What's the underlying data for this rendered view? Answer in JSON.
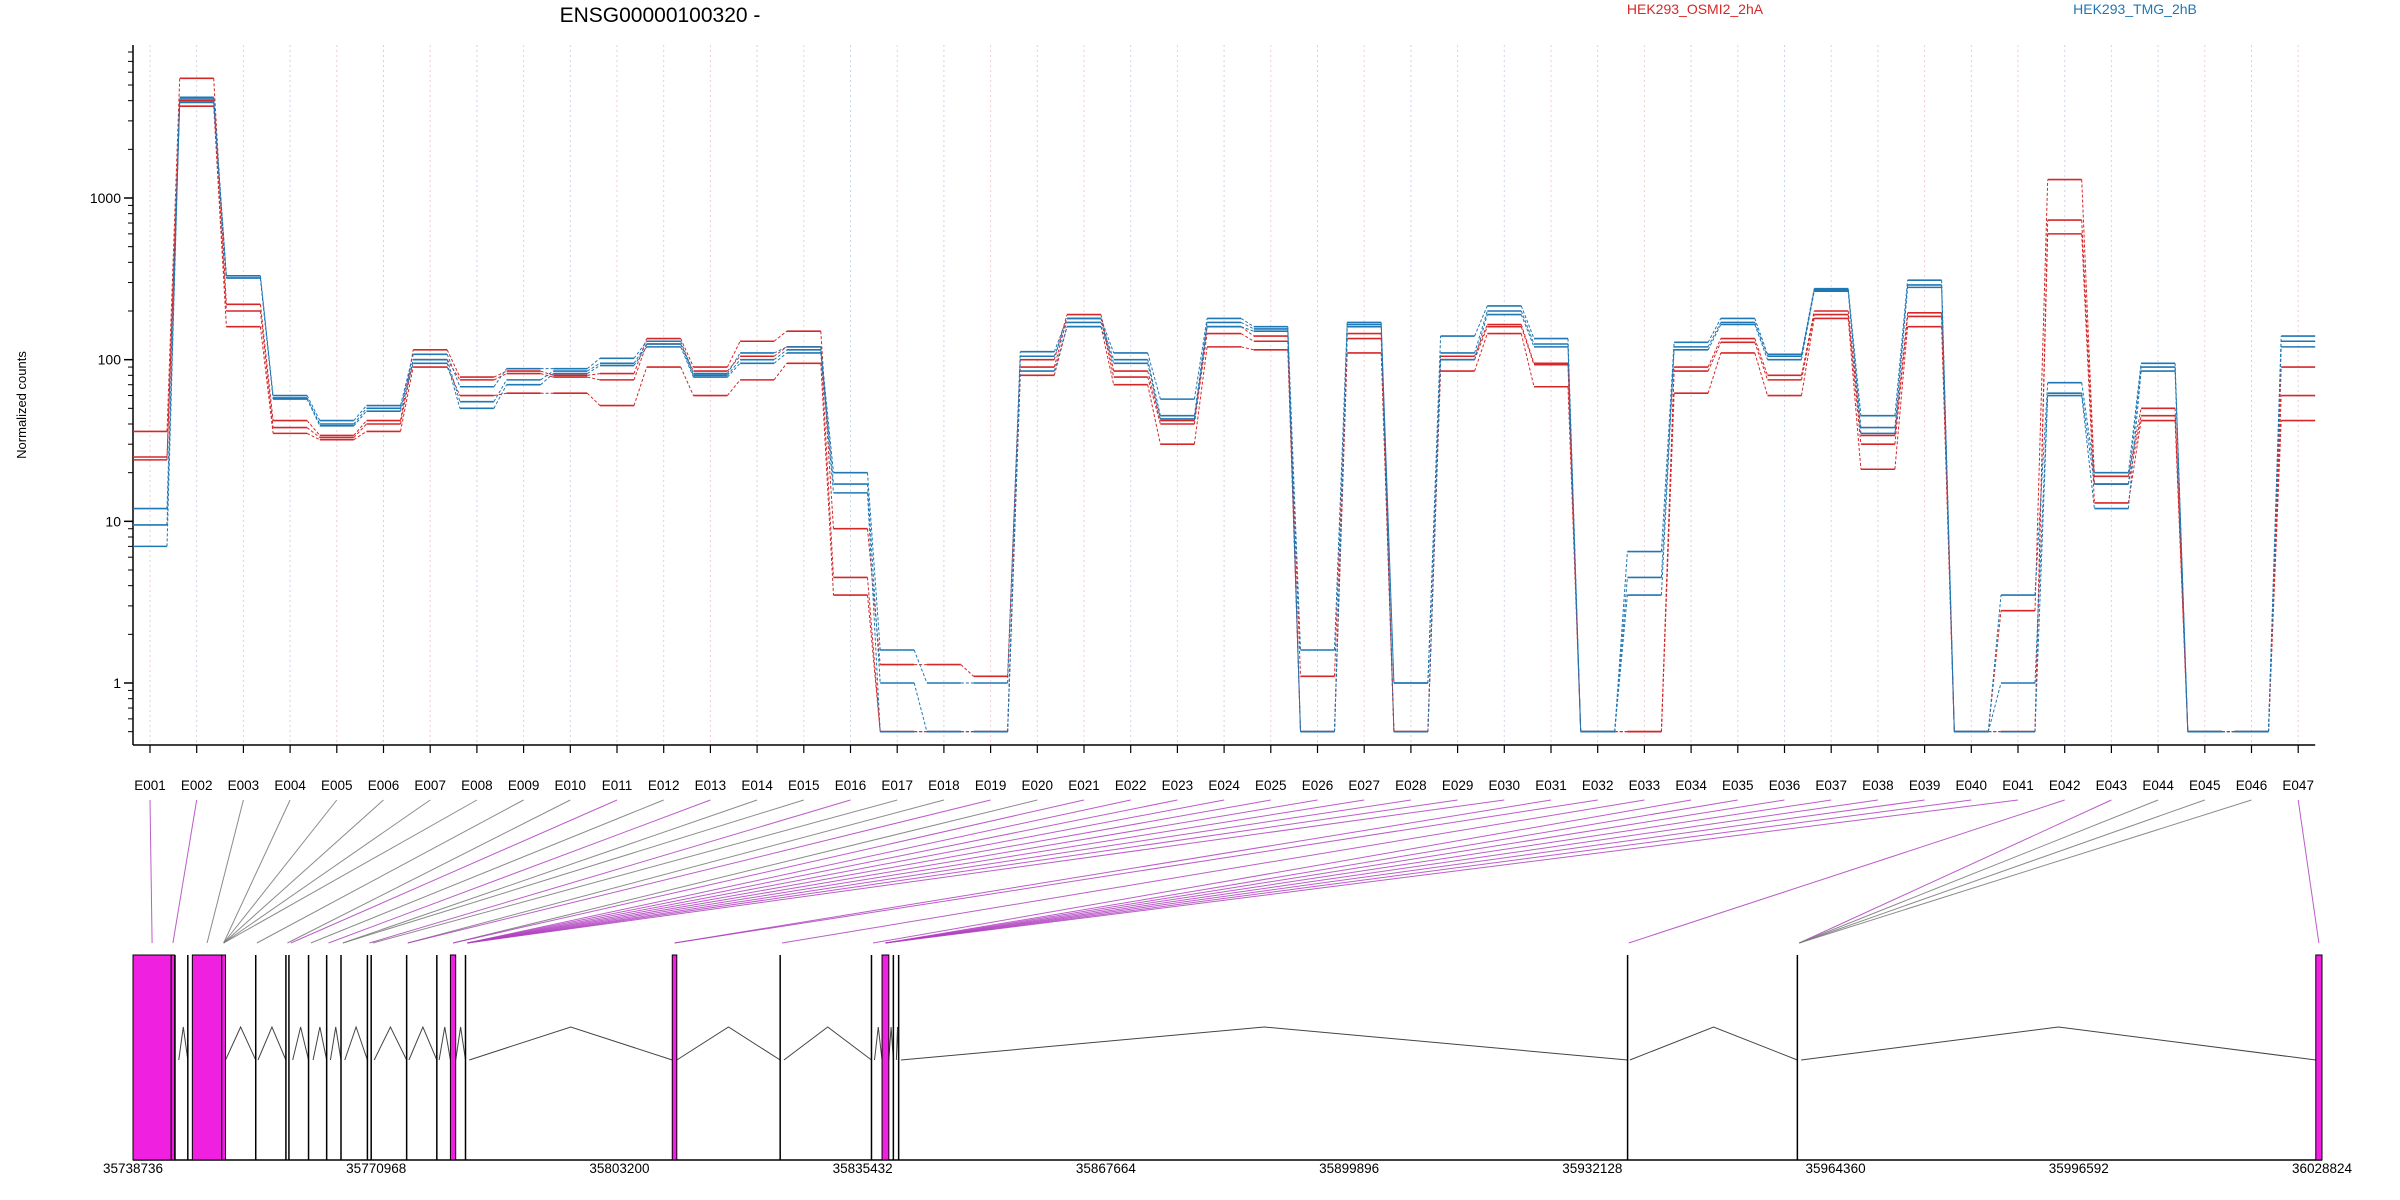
{
  "chart_data": {
    "type": "line",
    "title": "ENSG00000100320 -",
    "ylabel": "Normalized counts",
    "yscale": "log",
    "ylim": [
      0.5,
      8000
    ],
    "yticks": [
      1,
      10,
      100,
      1000
    ],
    "grid": "vertical dotted, colored alternately red/blue per exon",
    "legend": [
      {
        "name": "HEK293_OSMI2_2hA",
        "color": "#d62728"
      },
      {
        "name": "HEK293_TMG_2hB",
        "color": "#1f77b4"
      }
    ],
    "categories": [
      "E001",
      "E002",
      "E003",
      "E004",
      "E005",
      "E006",
      "E007",
      "E008",
      "E009",
      "E010",
      "E011",
      "E012",
      "E013",
      "E014",
      "E015",
      "E016",
      "E017",
      "E018",
      "E019",
      "E020",
      "E021",
      "E022",
      "E023",
      "E024",
      "E025",
      "E026",
      "E027",
      "E028",
      "E029",
      "E030",
      "E031",
      "E032",
      "E033",
      "E034",
      "E035",
      "E036",
      "E037",
      "E038",
      "E039",
      "E040",
      "E041",
      "E042",
      "E043",
      "E044",
      "E045",
      "E046",
      "E047"
    ],
    "series": [
      {
        "color": "#d62728",
        "values": [
          36,
          5500,
          220,
          42,
          34,
          42,
          115,
          78,
          85,
          80,
          82,
          135,
          90,
          130,
          150,
          9,
          1.3,
          1.3,
          1.1,
          100,
          190,
          85,
          42,
          160,
          140,
          1.1,
          145,
          0.5,
          105,
          165,
          95,
          0.5,
          0.5,
          90,
          135,
          80,
          200,
          34,
          195,
          0.5,
          2.8,
          1300,
          19,
          50,
          0.5,
          0.5,
          90
        ]
      },
      {
        "color": "#d62728",
        "values": [
          24,
          4000,
          200,
          38,
          33,
          40,
          100,
          75,
          82,
          78,
          75,
          125,
          85,
          105,
          120,
          4.5,
          0.5,
          0.5,
          0.5,
          90,
          180,
          78,
          40,
          145,
          130,
          0.5,
          135,
          0.5,
          100,
          160,
          93,
          0.5,
          0.5,
          85,
          128,
          75,
          190,
          30,
          185,
          0.5,
          0.5,
          730,
          17,
          45,
          0.5,
          0.5,
          60
        ]
      },
      {
        "color": "#d62728",
        "values": [
          25,
          3700,
          160,
          35,
          32,
          36,
          90,
          60,
          62,
          62,
          52,
          90,
          60,
          75,
          95,
          3.5,
          0.5,
          0.5,
          0.5,
          80,
          160,
          70,
          30,
          120,
          115,
          0.5,
          110,
          0.5,
          85,
          145,
          68,
          0.5,
          0.5,
          62,
          110,
          60,
          180,
          21,
          160,
          0.5,
          0.5,
          600,
          13,
          42,
          0.5,
          0.5,
          42
        ]
      },
      {
        "color": "#1f77b4",
        "values": [
          7,
          4200,
          330,
          60,
          42,
          52,
          108,
          68,
          88,
          88,
          102,
          130,
          82,
          110,
          120,
          20,
          1.6,
          1.0,
          1.0,
          112,
          180,
          110,
          57,
          180,
          160,
          1.6,
          170,
          1.0,
          140,
          215,
          135,
          0.5,
          6.5,
          128,
          180,
          108,
          275,
          45,
          310,
          0.5,
          3.5,
          72,
          20,
          95,
          0.5,
          0.5,
          140
        ]
      },
      {
        "color": "#1f77b4",
        "values": [
          12,
          4100,
          320,
          58,
          40,
          50,
          100,
          55,
          75,
          85,
          95,
          125,
          80,
          100,
          115,
          17,
          1.0,
          0.5,
          0.5,
          105,
          170,
          100,
          45,
          170,
          155,
          0.5,
          165,
          1.0,
          110,
          200,
          125,
          0.5,
          4.5,
          120,
          170,
          105,
          270,
          38,
          290,
          0.5,
          1.0,
          62,
          17,
          90,
          0.5,
          0.5,
          130
        ]
      },
      {
        "color": "#1f77b4",
        "values": [
          9.5,
          3900,
          320,
          57,
          39,
          48,
          95,
          50,
          70,
          82,
          92,
          120,
          78,
          95,
          110,
          15,
          0.5,
          0.5,
          0.5,
          85,
          160,
          95,
          43,
          160,
          150,
          0.5,
          160,
          0.5,
          100,
          190,
          120,
          0.5,
          3.5,
          115,
          165,
          100,
          265,
          35,
          280,
          0.5,
          0.5,
          60,
          12,
          85,
          0.5,
          0.5,
          120
        ]
      }
    ],
    "x_genomic_ticks": [
      "35738736",
      "35770968",
      "35803200",
      "35835432",
      "35867664",
      "35899896",
      "35932128",
      "35964360",
      "35996592",
      "36028824"
    ],
    "x_genomic_range": [
      35738736,
      36028824
    ],
    "exons": [
      [
        35738736,
        35743800,
        1
      ],
      [
        35743800,
        35744250,
        1
      ],
      [
        35744300,
        35744800,
        0
      ],
      [
        35746000,
        35746600,
        0
      ],
      [
        35746600,
        35750500,
        1
      ],
      [
        35750500,
        35751000,
        1
      ],
      [
        35755000,
        35755300,
        0
      ],
      [
        35759000,
        35759400,
        0
      ],
      [
        35759400,
        35759900,
        0
      ],
      [
        35762000,
        35762600,
        0
      ],
      [
        35764400,
        35764900,
        0
      ],
      [
        35766300,
        35766800,
        0
      ],
      [
        35769800,
        35770300,
        0
      ],
      [
        35770300,
        35770700,
        0
      ],
      [
        35775000,
        35775300,
        0
      ],
      [
        35779000,
        35779300,
        0
      ],
      [
        35780800,
        35781500,
        1
      ],
      [
        35782800,
        35783300,
        0
      ],
      [
        35810200,
        35810800,
        1
      ],
      [
        35824500,
        35825000,
        0
      ],
      [
        35836600,
        35837000,
        0
      ],
      [
        35838000,
        35838900,
        1
      ],
      [
        35839500,
        35839900,
        0
      ],
      [
        35840200,
        35840500,
        0
      ],
      [
        35936800,
        35937100,
        0
      ],
      [
        35959300,
        35959800,
        0
      ],
      [
        36028000,
        36028824,
        1
      ]
    ],
    "exon_link_index": [
      0,
      1,
      4,
      5,
      5,
      5,
      5,
      5,
      6,
      7,
      8,
      9,
      10,
      11,
      11,
      12,
      13,
      14,
      14,
      16,
      16,
      17,
      17,
      17,
      17,
      17,
      17,
      17,
      17,
      17,
      18,
      18,
      19,
      20,
      21,
      21,
      21,
      21,
      21,
      21,
      21,
      24,
      25,
      25,
      25,
      25,
      26
    ],
    "exon_link_purple": [
      1,
      1,
      0,
      0,
      0,
      0,
      0,
      0,
      0,
      0,
      1,
      0,
      1,
      0,
      0,
      1,
      0,
      0,
      1,
      0,
      1,
      1,
      1,
      1,
      1,
      1,
      1,
      1,
      1,
      1,
      1,
      1,
      1,
      1,
      1,
      1,
      1,
      1,
      1,
      1,
      1,
      1,
      1,
      0,
      0,
      0,
      1
    ]
  }
}
